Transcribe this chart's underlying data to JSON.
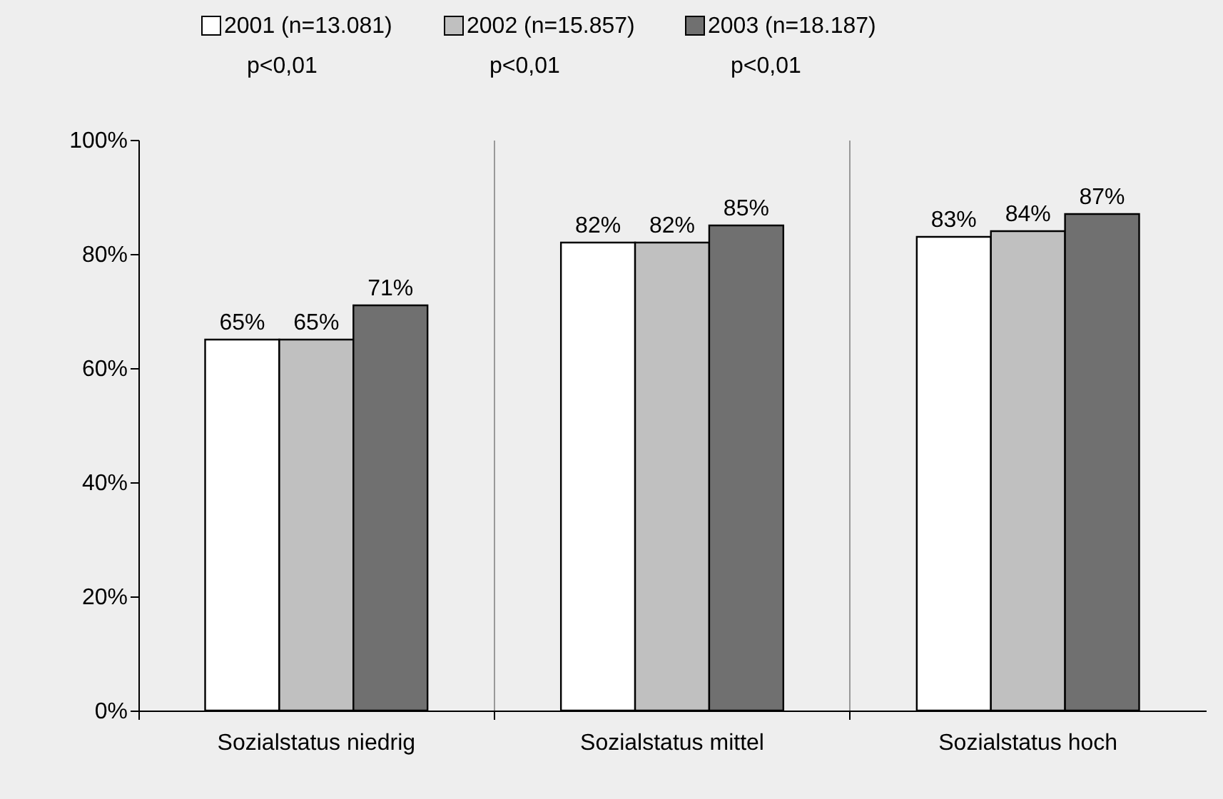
{
  "chart_data": {
    "type": "bar",
    "categories": [
      "Sozialstatus niedrig",
      "Sozialstatus mittel",
      "Sozialstatus hoch"
    ],
    "series": [
      {
        "name": "2001 (n=13.081)",
        "color": "#ffffff",
        "values": [
          65,
          82,
          83
        ],
        "value_labels": [
          "65%",
          "82%",
          "83%"
        ]
      },
      {
        "name": "2002 (n=15.857)",
        "color": "#c0c0c0",
        "values": [
          65,
          82,
          84
        ],
        "value_labels": [
          "65%",
          "82%",
          "84%"
        ]
      },
      {
        "name": "2003 (n=18.187)",
        "color": "#707070",
        "values": [
          71,
          85,
          87
        ],
        "value_labels": [
          "71%",
          "85%",
          "87%"
        ]
      }
    ],
    "annotations": [
      "p<0,01",
      "p<0,01",
      "p<0,01"
    ],
    "ylim": [
      0,
      100
    ],
    "yticks": [
      {
        "value": 0,
        "label": "0%"
      },
      {
        "value": 20,
        "label": "20%"
      },
      {
        "value": 40,
        "label": "40%"
      },
      {
        "value": 60,
        "label": "60%"
      },
      {
        "value": 80,
        "label": "80%"
      },
      {
        "value": 100,
        "label": "100%"
      }
    ],
    "grid": "x",
    "legend": "top"
  }
}
